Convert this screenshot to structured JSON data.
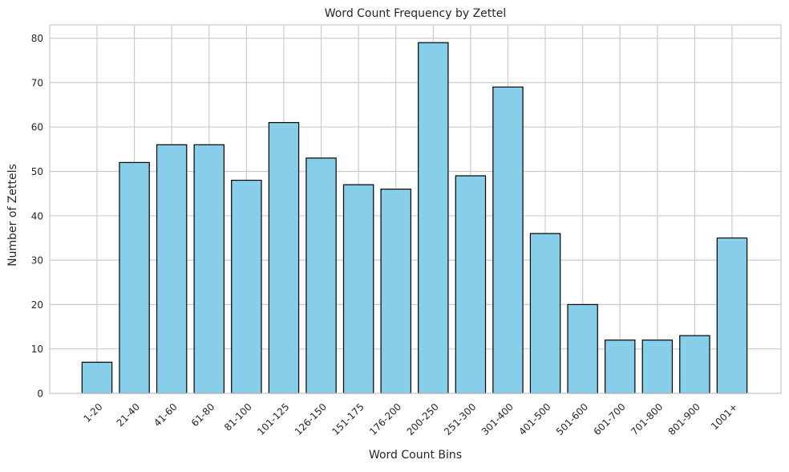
{
  "chart_data": {
    "type": "bar",
    "title": "Word Count Frequency by Zettel",
    "xlabel": "Word Count Bins",
    "ylabel": "Number of Zettels",
    "categories": [
      "1-20",
      "21-40",
      "41-60",
      "61-80",
      "81-100",
      "101-125",
      "126-150",
      "151-175",
      "176-200",
      "200-250",
      "251-300",
      "301-400",
      "401-500",
      "501-600",
      "601-700",
      "701-800",
      "801-900",
      "1001+"
    ],
    "values": [
      7,
      52,
      56,
      56,
      48,
      61,
      53,
      47,
      46,
      79,
      49,
      69,
      36,
      20,
      12,
      12,
      13,
      35
    ],
    "ylim": [
      0,
      83
    ],
    "yticks": [
      0,
      10,
      20,
      30,
      40,
      50,
      60,
      70,
      80
    ],
    "grid": true,
    "bar_color": "#87CEEB",
    "bar_edge_color": "#000000",
    "grid_color": "#cccccc"
  }
}
